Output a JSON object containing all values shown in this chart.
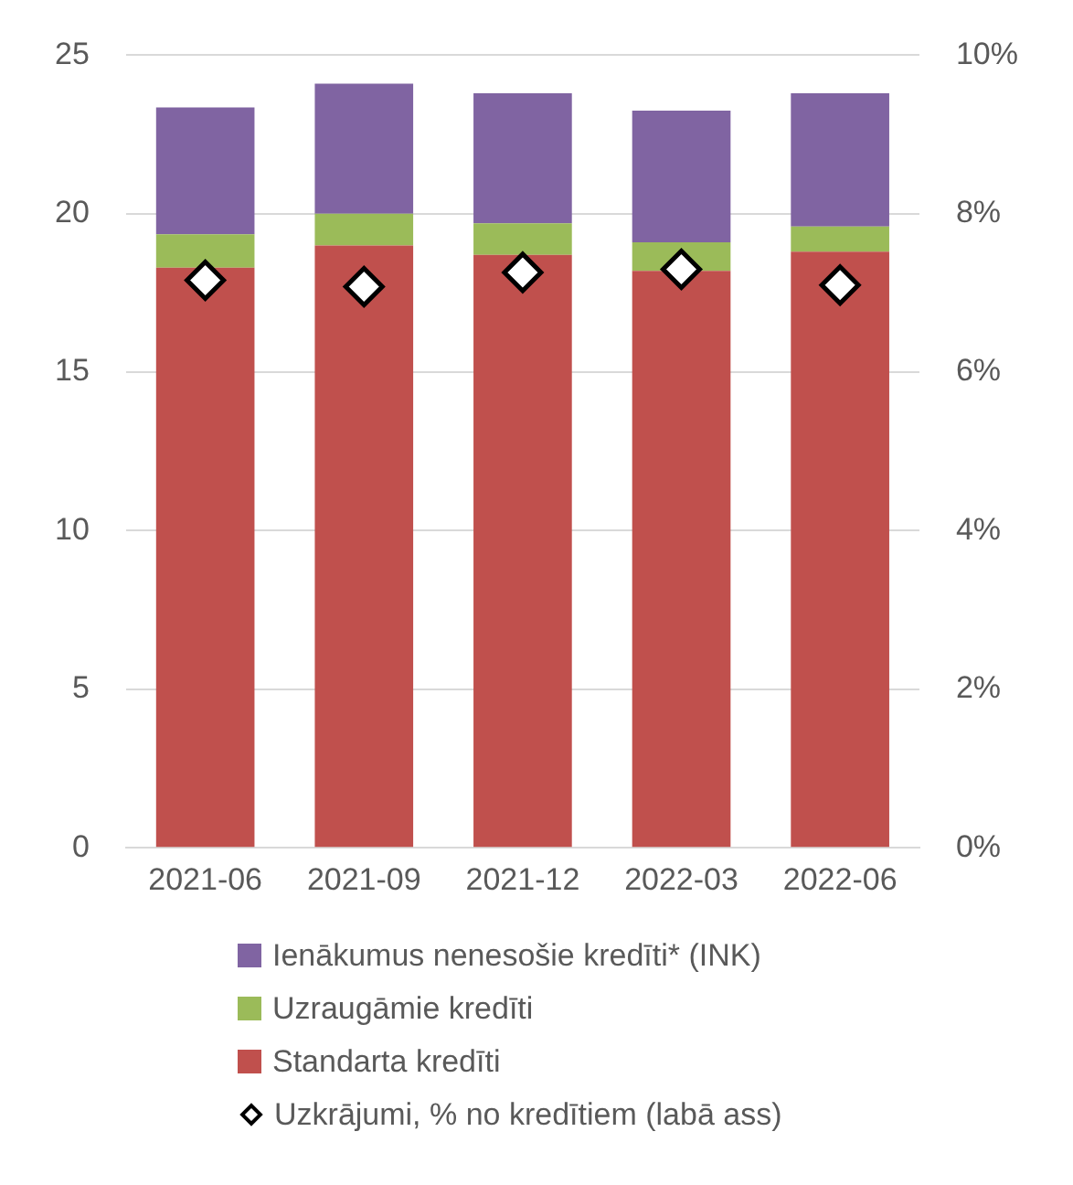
{
  "chart_data": {
    "type": "bar",
    "stacked": true,
    "categories": [
      "2021-06",
      "2021-09",
      "2021-12",
      "2022-03",
      "2022-06"
    ],
    "series": [
      {
        "name": "Standarta kredīti",
        "color": "#c0504d",
        "values": [
          18.3,
          19.0,
          18.7,
          18.2,
          18.8
        ]
      },
      {
        "name": "Uzraugāmie kredīti",
        "color": "#9bbb59",
        "values": [
          1.05,
          1.0,
          1.0,
          0.9,
          0.8
        ]
      },
      {
        "name": "Ienākumus nenesošie kredīti* (INK)",
        "color": "#8064a2",
        "values": [
          4.0,
          4.1,
          4.1,
          4.15,
          4.2
        ]
      },
      {
        "name": "Uzkrājumi, % no kredītiem (labā ass)",
        "type": "scatter",
        "axis": "y2",
        "color": "#ffffff",
        "marker": "diamond",
        "values": [
          7.16,
          7.08,
          7.26,
          7.3,
          7.1
        ]
      }
    ],
    "ylim": [
      0,
      25
    ],
    "yticks": [
      0,
      5,
      10,
      15,
      20,
      25
    ],
    "y2lim": [
      0,
      10
    ],
    "y2ticks": [
      {
        "value": 0,
        "label": "0%"
      },
      {
        "value": 2,
        "label": "2%"
      },
      {
        "value": 4,
        "label": "4%"
      },
      {
        "value": 6,
        "label": "6%"
      },
      {
        "value": 8,
        "label": "8%"
      },
      {
        "value": 10,
        "label": "10%"
      }
    ],
    "grid": "y",
    "legend": "bottom"
  }
}
